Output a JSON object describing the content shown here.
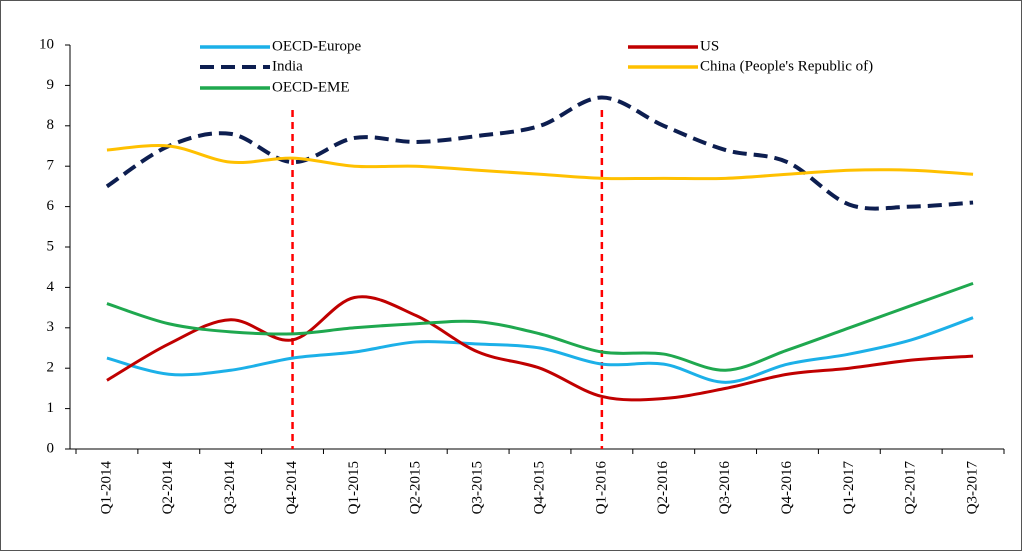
{
  "chart_data": {
    "type": "line",
    "categories": [
      "Q1-2014",
      "Q2-2014",
      "Q3-2014",
      "Q4-2014",
      "Q1-2015",
      "Q2-2015",
      "Q3-2015",
      "Q4-2015",
      "Q1-2016",
      "Q2-2016",
      "Q3-2016",
      "Q4-2016",
      "Q1-2017",
      "Q2-2017",
      "Q3-2017"
    ],
    "series": [
      {
        "name": "OECD-Europe",
        "color": "#1cb0e8",
        "values": [
          2.25,
          1.85,
          1.95,
          2.25,
          2.4,
          2.65,
          2.6,
          2.5,
          2.1,
          2.1,
          1.65,
          2.1,
          2.35,
          2.7,
          3.25
        ]
      },
      {
        "name": "US",
        "color": "#c00000",
        "values": [
          1.7,
          2.6,
          3.2,
          2.7,
          3.75,
          3.3,
          2.4,
          2.0,
          1.3,
          1.25,
          1.5,
          1.85,
          2.0,
          2.2,
          2.3
        ]
      },
      {
        "name": "India",
        "color": "#0d1e50",
        "dashed": true,
        "values": [
          6.5,
          7.5,
          7.8,
          7.1,
          7.7,
          7.6,
          7.75,
          8.0,
          8.7,
          8.0,
          7.4,
          7.1,
          6.05,
          6.0,
          6.1
        ]
      },
      {
        "name": "China (People's Republic of)",
        "color": "#ffc000",
        "values": [
          7.4,
          7.5,
          7.1,
          7.2,
          7.0,
          7.0,
          6.9,
          6.8,
          6.7,
          6.7,
          6.7,
          6.8,
          6.9,
          6.9,
          6.8
        ]
      },
      {
        "name": "OECD-EME",
        "color": "#1fa84f",
        "values": [
          3.6,
          3.1,
          2.9,
          2.85,
          3.0,
          3.1,
          3.15,
          2.85,
          2.4,
          2.35,
          1.95,
          2.45,
          3.0,
          3.55,
          4.1
        ]
      }
    ],
    "vlines": [
      "Q4-2014",
      "Q1-2016"
    ],
    "vline_color": "#ff0000",
    "ylim": [
      0,
      10
    ],
    "yticks": [
      0,
      1,
      2,
      3,
      4,
      5,
      6,
      7,
      8,
      9,
      10
    ],
    "grid": false
  }
}
